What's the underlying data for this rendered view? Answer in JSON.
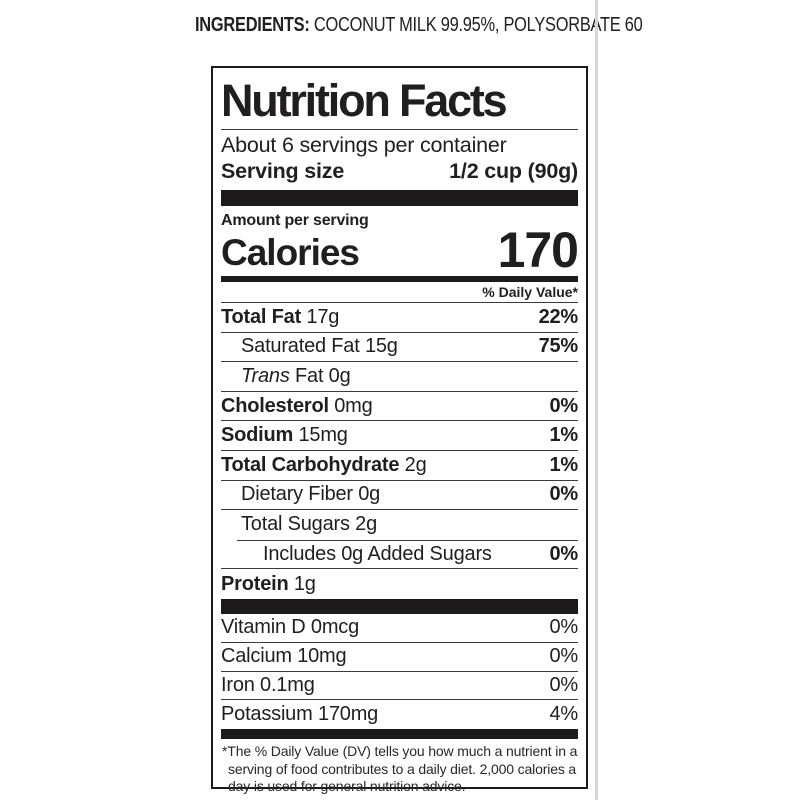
{
  "colors": {
    "panel_black": "#1d1a1b",
    "rule_gray": "#3b3b3b",
    "page_divider_line": "#d7d7d7",
    "text": "#211e1f"
  },
  "ingredients": {
    "label": "INGREDIENTS:",
    "value": " COCONUT MILK 99.95%, POLYSORBATE 60"
  },
  "panel": {
    "title": "Nutrition Facts",
    "servings_per_container": "About 6 servings per container",
    "serving_size_label": "Serving size",
    "serving_size_value": "1/2 cup (90g)",
    "amount_per_serving": "Amount per serving",
    "calories_label": "Calories",
    "calories_value": "170",
    "daily_value_header": "% Daily Value*",
    "nutrients": [
      {
        "name": "Total Fat",
        "amount": "17g",
        "dv": "22%"
      },
      {
        "name": "Saturated Fat",
        "amount": "15g",
        "dv": "75%"
      },
      {
        "name_italic": "Trans",
        "name": "Fat",
        "amount": "0g",
        "dv": ""
      },
      {
        "name": "Cholesterol",
        "amount": "0mg",
        "dv": "0%"
      },
      {
        "name": "Sodium",
        "amount": "15mg",
        "dv": "1%"
      },
      {
        "name": "Total Carbohydrate",
        "amount": "2g",
        "dv": "1%"
      },
      {
        "name": "Dietary Fiber",
        "amount": "0g",
        "dv": "0%"
      },
      {
        "name": "Total Sugars",
        "amount": "2g",
        "dv": ""
      },
      {
        "name": "Includes 0g Added Sugars",
        "amount": "",
        "dv": "0%"
      },
      {
        "name": "Protein",
        "amount": "1g",
        "dv": ""
      }
    ],
    "vitamins": [
      {
        "name": "Vitamin D",
        "amount": "0mcg",
        "dv": "0%"
      },
      {
        "name": "Calcium",
        "amount": "10mg",
        "dv": "0%"
      },
      {
        "name": "Iron",
        "amount": "0.1mg",
        "dv": "0%"
      },
      {
        "name": "Potassium",
        "amount": "170mg",
        "dv": "4%"
      }
    ],
    "footnote": "*The % Daily Value (DV) tells you how much a nutrient in a serving of food contributes to a daily diet. 2,000 calories a day is used for general nutrition advice."
  }
}
